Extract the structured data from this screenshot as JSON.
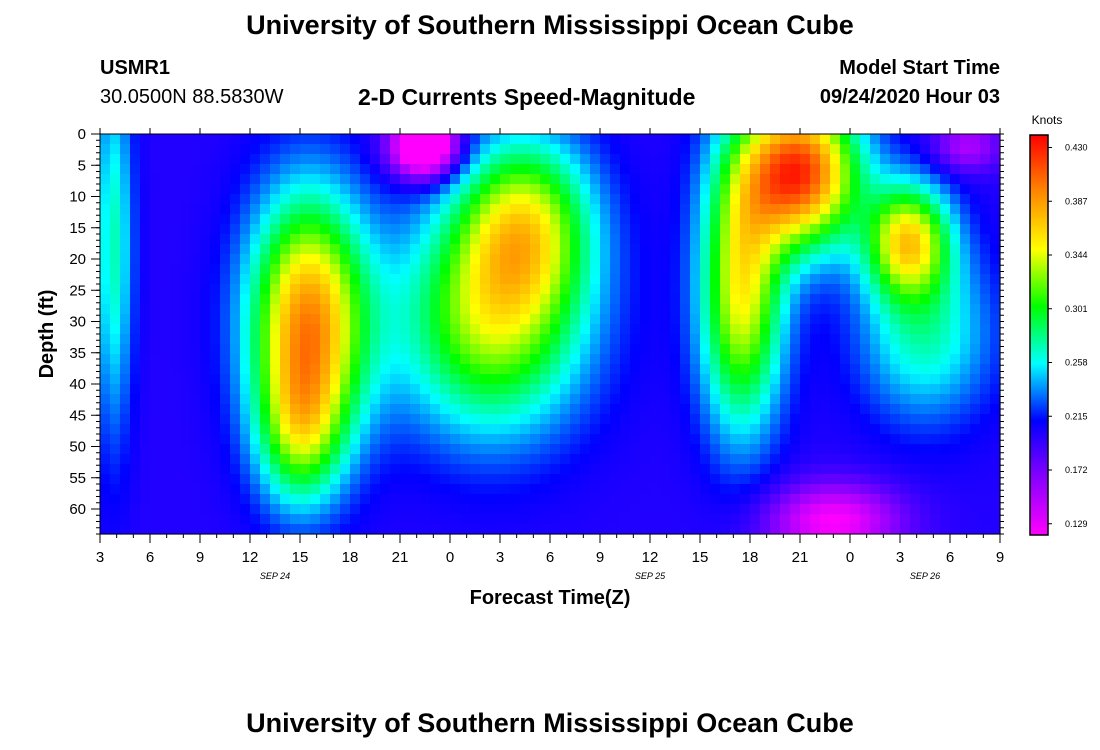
{
  "page": {
    "title_top": "University of Southern Mississippi Ocean Cube",
    "title_bottom": "University of Southern Mississippi Ocean Cube",
    "station_id": "USMR1",
    "station_coords": "30.0500N 88.5830W",
    "plot_title": "2-D Currents Speed-Magnitude",
    "model_start_label": "Model Start Time",
    "model_start_value": "09/24/2020 Hour 03"
  },
  "chart_data": {
    "type": "heatmap",
    "title": "2-D Currents Speed-Magnitude",
    "xlabel": "Forecast Time(Z)",
    "ylabel": "Depth (ft)",
    "x_tick_labels": [
      "3",
      "6",
      "9",
      "12",
      "15",
      "18",
      "21",
      "0",
      "3",
      "6",
      "9",
      "12",
      "15",
      "18",
      "21",
      "0",
      "3",
      "6",
      "9"
    ],
    "x_tick_hours": [
      3,
      6,
      9,
      12,
      15,
      18,
      21,
      24,
      27,
      30,
      33,
      36,
      39,
      42,
      45,
      48,
      51,
      54,
      57
    ],
    "xlim_hours": [
      3,
      57
    ],
    "date_labels": [
      {
        "text": "SEP 24",
        "hour": 13.5
      },
      {
        "text": "SEP 25",
        "hour": 36
      },
      {
        "text": "SEP 26",
        "hour": 52.5
      }
    ],
    "y_tick_labels": [
      "0",
      "5",
      "10",
      "15",
      "20",
      "25",
      "30",
      "35",
      "40",
      "45",
      "50",
      "55",
      "60"
    ],
    "y_ticks": [
      0,
      5,
      10,
      15,
      20,
      25,
      30,
      35,
      40,
      45,
      50,
      55,
      60
    ],
    "ylim": [
      0,
      64
    ],
    "y_inverted": true,
    "colorbar": {
      "unit": "Knots",
      "min": 0.12,
      "max": 0.44,
      "tick_labels": [
        "0.430",
        "0.387",
        "0.344",
        "0.301",
        "0.258",
        "0.215",
        "0.172",
        "0.129"
      ],
      "tick_values": [
        0.43,
        0.387,
        0.344,
        0.301,
        0.258,
        0.215,
        0.172,
        0.129
      ],
      "colors": [
        "#ff00ff",
        "#8800ff",
        "#0000ff",
        "#00ffff",
        "#00ff00",
        "#ffff00",
        "#ff8800",
        "#ff0000"
      ]
    },
    "background_speed": 0.2,
    "features": [
      {
        "hour": 3.8,
        "depth": 18,
        "sx": 1.2,
        "sy": 30,
        "amp": 0.07
      },
      {
        "hour": 15.5,
        "depth": 30,
        "sx": 3.5,
        "sy": 20,
        "amp": 0.19
      },
      {
        "hour": 15.0,
        "depth": 48,
        "sx": 2.5,
        "sy": 12,
        "amp": 0.08
      },
      {
        "hour": 26.5,
        "depth": 30,
        "sx": 5.5,
        "sy": 18,
        "amp": 0.13
      },
      {
        "hour": 28.5,
        "depth": 14,
        "sx": 4.0,
        "sy": 14,
        "amp": 0.12
      },
      {
        "hour": 22.5,
        "depth": 2,
        "sx": 2.0,
        "sy": 5,
        "amp": -0.15
      },
      {
        "hour": 45.0,
        "depth": 6,
        "sx": 3.5,
        "sy": 12,
        "amp": 0.22
      },
      {
        "hour": 41.5,
        "depth": 25,
        "sx": 2.5,
        "sy": 22,
        "amp": 0.15
      },
      {
        "hour": 51.5,
        "depth": 17,
        "sx": 2.5,
        "sy": 9,
        "amp": 0.15
      },
      {
        "hour": 52.5,
        "depth": 32,
        "sx": 4.0,
        "sy": 14,
        "amp": 0.07
      },
      {
        "hour": 55.0,
        "depth": 2,
        "sx": 2.0,
        "sy": 4,
        "amp": -0.05
      },
      {
        "hour": 47.0,
        "depth": 62,
        "sx": 4.0,
        "sy": 6,
        "amp": -0.08
      }
    ]
  }
}
